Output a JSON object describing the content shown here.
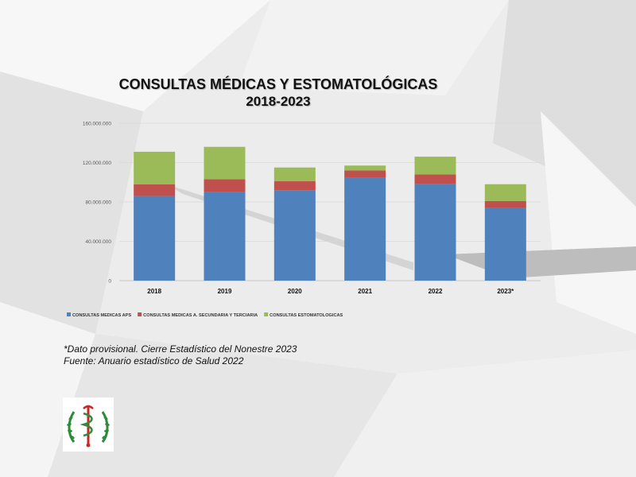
{
  "slide": {
    "title_line1": "CONSULTAS  MÉDICAS Y ESTOMATOLÓGICAS",
    "title_line2": "2018-2023",
    "note1": "*Dato provisional. Cierre Estadístico del Nonestre 2023",
    "note2": "Fuente: Anuario estadístico de Salud 2022",
    "logo_icon": "medical-caduceus-emblem-icon"
  },
  "chart_data": {
    "type": "bar",
    "stacked": true,
    "categories": [
      "2018",
      "2019",
      "2020",
      "2021",
      "2022",
      "2023*"
    ],
    "series": [
      {
        "name": "CONSULTAS MEDICAS APS",
        "color": "#4f81bd",
        "values": [
          86000000,
          90000000,
          92000000,
          105000000,
          98000000,
          74000000
        ]
      },
      {
        "name": "CONSULTAS MEDICAS A. SECUNDARIA Y TERCIARIA",
        "color": "#c0504d",
        "values": [
          12000000,
          13000000,
          9000000,
          7000000,
          10000000,
          7000000
        ]
      },
      {
        "name": "CONSULTAS ESTOMATOLOGICAS",
        "color": "#9bbb59",
        "values": [
          33000000,
          33000000,
          14000000,
          5000000,
          18000000,
          17000000
        ]
      }
    ],
    "y_ticks": [
      "0",
      "40.000.000",
      "80.000.000",
      "120.000.000",
      "160.000.000"
    ],
    "ylim": [
      0,
      160000000
    ],
    "grid": true,
    "legend_position": "bottom"
  }
}
